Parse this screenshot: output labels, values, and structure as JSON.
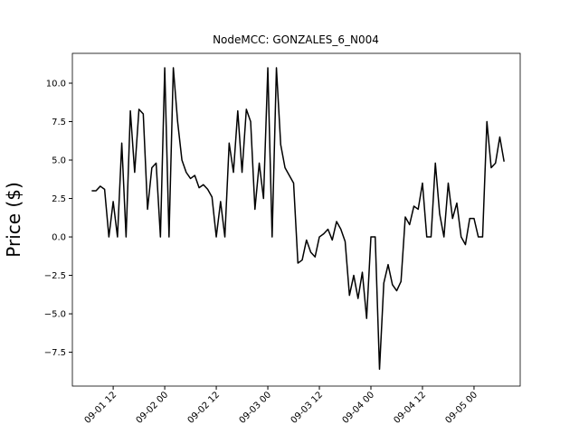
{
  "chart_data": {
    "type": "line",
    "title": "NodeMCC: GONZALES_6_N004",
    "y_label": "Price ($)",
    "color": "#000000",
    "x": [
      "09-01 07",
      "09-01 08",
      "09-01 09",
      "09-01 10",
      "09-01 11",
      "09-01 12",
      "09-01 13",
      "09-01 14",
      "09-01 15",
      "09-01 16",
      "09-01 17",
      "09-01 18",
      "09-01 19",
      "09-01 20",
      "09-01 21",
      "09-01 22",
      "09-01 23",
      "09-02 00",
      "09-02 01",
      "09-02 02",
      "09-02 03",
      "09-02 04",
      "09-02 05",
      "09-02 06",
      "09-02 07",
      "09-02 08",
      "09-02 09",
      "09-02 10",
      "09-02 11",
      "09-02 12",
      "09-02 13",
      "09-02 14",
      "09-02 15",
      "09-02 16",
      "09-02 17",
      "09-02 18",
      "09-02 19",
      "09-02 20",
      "09-02 21",
      "09-02 22",
      "09-02 23",
      "09-03 00",
      "09-03 01",
      "09-03 02",
      "09-03 03",
      "09-03 04",
      "09-03 05",
      "09-03 06",
      "09-03 07",
      "09-03 08",
      "09-03 09",
      "09-03 10",
      "09-03 11",
      "09-03 12",
      "09-03 13",
      "09-03 14",
      "09-03 15",
      "09-03 16",
      "09-03 17",
      "09-03 18",
      "09-03 19",
      "09-03 20",
      "09-03 21",
      "09-03 22",
      "09-03 23",
      "09-04 00",
      "09-04 01",
      "09-04 02",
      "09-04 03",
      "09-04 04",
      "09-04 05",
      "09-04 06",
      "09-04 07",
      "09-04 08",
      "09-04 09",
      "09-04 10",
      "09-04 11",
      "09-04 12",
      "09-04 13",
      "09-04 14",
      "09-04 15",
      "09-04 16",
      "09-04 17",
      "09-04 18",
      "09-04 19",
      "09-04 20",
      "09-04 21",
      "09-04 22",
      "09-04 23",
      "09-05 00",
      "09-05 01",
      "09-05 02",
      "09-05 03",
      "09-05 04",
      "09-05 05",
      "09-05 06",
      "09-05 07"
    ],
    "values": [
      3.0,
      3.0,
      3.3,
      3.1,
      0,
      2.3,
      0,
      6.1,
      0,
      8.2,
      4.2,
      8.3,
      8.0,
      1.8,
      4.5,
      4.8,
      0,
      11.0,
      0,
      11.0,
      7.5,
      5.0,
      4.2,
      3.8,
      4.0,
      3.2,
      3.4,
      3.1,
      2.6,
      0,
      2.3,
      0,
      6.1,
      4.2,
      8.2,
      4.2,
      8.3,
      7.5,
      1.8,
      4.8,
      2.5,
      11.0,
      0,
      11.0,
      6.0,
      4.5,
      4.0,
      3.5,
      -1.7,
      -1.5,
      -0.2,
      -1.0,
      -1.3,
      0,
      0.2,
      0.5,
      -0.2,
      1.0,
      0.5,
      -0.3,
      -3.8,
      -2.5,
      -4.0,
      -2.3,
      -5.3,
      0,
      0,
      -8.6,
      -3.0,
      -1.8,
      -3.1,
      -3.5,
      -2.9,
      1.3,
      0.8,
      2.0,
      1.8,
      3.5,
      0,
      0,
      4.8,
      1.5,
      0,
      3.5,
      1.2,
      2.2,
      0,
      -0.5,
      1.2,
      1.2,
      0,
      0,
      7.5,
      4.5,
      4.8,
      6.5,
      4.9
    ],
    "xlim": [
      "09-01 02:30",
      "09-05 10:45"
    ],
    "xticks": [
      "09-01 12",
      "09-02 00",
      "09-02 12",
      "09-03 00",
      "09-03 12",
      "09-04 00",
      "09-04 12",
      "09-05 00"
    ],
    "ylim": [
      -9.7,
      11.94
    ],
    "yticks": [
      {
        "value": -7.5,
        "label": "−7.5"
      },
      {
        "value": -5,
        "label": "−5.0"
      },
      {
        "value": -2.5,
        "label": "−2.5"
      },
      {
        "value": 0,
        "label": "0.0"
      },
      {
        "value": 2.5,
        "label": "2.5"
      },
      {
        "value": 5,
        "label": "5.0"
      },
      {
        "value": 7.5,
        "label": "7.5"
      },
      {
        "value": 10,
        "label": "10.0"
      }
    ]
  }
}
